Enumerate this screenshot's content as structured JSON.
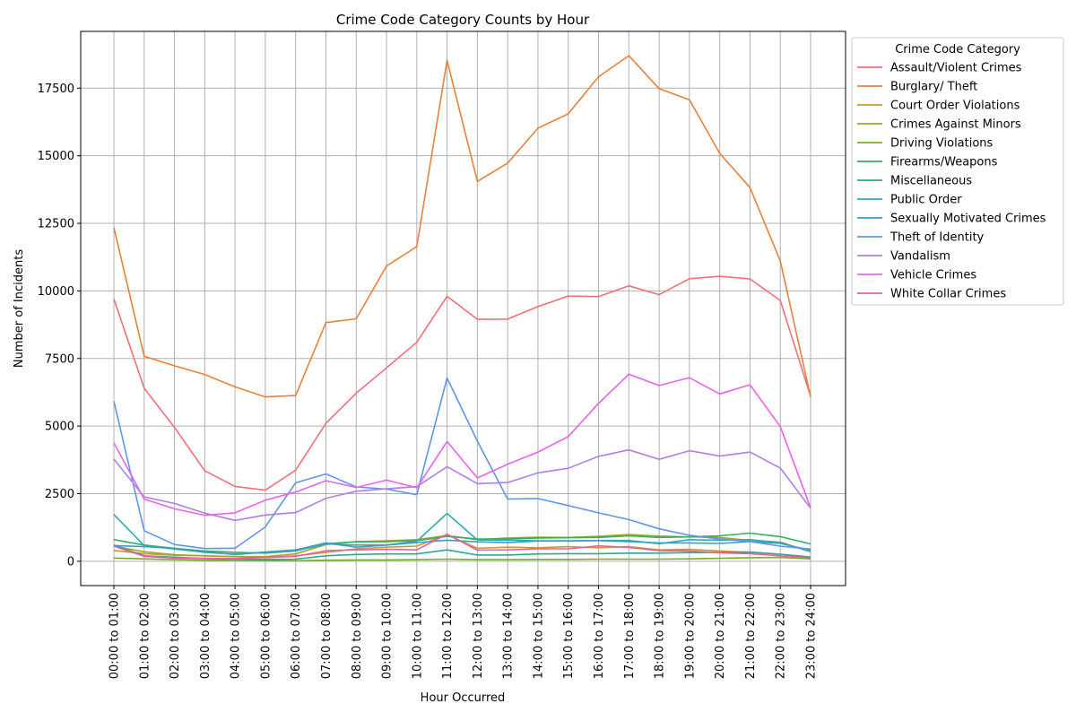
{
  "chart_data": {
    "type": "line",
    "title": "Crime Code Category Counts by Hour",
    "xlabel": "Hour Occurred",
    "ylabel": "Number of Incidents",
    "ylim": [
      -900,
      19600
    ],
    "yticks": [
      0,
      2500,
      5000,
      7500,
      10000,
      12500,
      15000,
      17500
    ],
    "grid": true,
    "legend_title": "Crime Code Category",
    "legend_position": "outside-right-top",
    "categories": [
      "00:00 to 01:00",
      "01:00 to 02:00",
      "02:00 to 03:00",
      "03:00 to 04:00",
      "04:00 to 05:00",
      "05:00 to 06:00",
      "06:00 to 07:00",
      "07:00 to 08:00",
      "08:00 to 09:00",
      "09:00 to 10:00",
      "10:00 to 11:00",
      "11:00 to 12:00",
      "12:00 to 13:00",
      "13:00 to 14:00",
      "14:00 to 15:00",
      "15:00 to 16:00",
      "16:00 to 17:00",
      "17:00 to 18:00",
      "18:00 to 19:00",
      "19:00 to 20:00",
      "20:00 to 21:00",
      "21:00 to 22:00",
      "22:00 to 23:00",
      "23:00 to 24:00"
    ],
    "series": [
      {
        "name": "Assault/Violent Crimes",
        "color": "#f2707a",
        "values": [
          9700,
          6400,
          4950,
          3350,
          2770,
          2630,
          3370,
          5100,
          6220,
          7150,
          8100,
          9800,
          8950,
          8960,
          9420,
          9810,
          9790,
          10190,
          9860,
          10450,
          10540,
          10440,
          9650,
          6100
        ]
      },
      {
        "name": "Burglary/ Theft",
        "color": "#e8823a",
        "values": [
          12350,
          7580,
          7230,
          6910,
          6450,
          6080,
          6130,
          8830,
          8970,
          10920,
          11640,
          18530,
          14050,
          14730,
          16020,
          16550,
          17920,
          18700,
          17480,
          17070,
          15090,
          13820,
          11110,
          6080
        ]
      },
      {
        "name": "Court Order Violations",
        "color": "#cc9a2a",
        "values": [
          400,
          280,
          220,
          200,
          170,
          130,
          200,
          330,
          460,
          520,
          560,
          980,
          480,
          520,
          500,
          540,
          500,
          540,
          420,
          440,
          380,
          330,
          260,
          160
        ]
      },
      {
        "name": "Crimes Against Minors",
        "color": "#a9a228",
        "values": [
          560,
          350,
          240,
          200,
          170,
          170,
          270,
          620,
          730,
          760,
          800,
          950,
          800,
          860,
          890,
          880,
          920,
          990,
          930,
          900,
          880,
          770,
          710,
          350
        ]
      },
      {
        "name": "Driving Violations",
        "color": "#77ad2b",
        "values": [
          120,
          90,
          60,
          40,
          30,
          20,
          20,
          40,
          50,
          50,
          60,
          80,
          60,
          60,
          70,
          70,
          80,
          80,
          80,
          90,
          110,
          130,
          140,
          90
        ]
      },
      {
        "name": "Firearms/Weapons",
        "color": "#30b060",
        "values": [
          800,
          600,
          480,
          380,
          330,
          300,
          380,
          650,
          720,
          730,
          760,
          920,
          820,
          820,
          860,
          870,
          880,
          940,
          880,
          900,
          940,
          1040,
          910,
          640
        ]
      },
      {
        "name": "Miscellaneous",
        "color": "#2fa88e",
        "values": [
          600,
          200,
          150,
          100,
          80,
          70,
          80,
          200,
          250,
          270,
          270,
          420,
          230,
          230,
          270,
          280,
          280,
          300,
          300,
          320,
          330,
          340,
          260,
          150
        ]
      },
      {
        "name": "Public Order",
        "color": "#30acb0",
        "values": [
          1730,
          580,
          450,
          340,
          250,
          330,
          390,
          640,
          600,
          600,
          740,
          1770,
          790,
          780,
          760,
          750,
          770,
          770,
          650,
          800,
          780,
          800,
          690,
          360
        ]
      },
      {
        "name": "Sexually Motivated Crimes",
        "color": "#3b9ec9",
        "values": [
          580,
          540,
          480,
          330,
          260,
          340,
          420,
          680,
          520,
          600,
          690,
          780,
          720,
          690,
          750,
          760,
          760,
          730,
          680,
          680,
          660,
          730,
          660,
          410
        ]
      },
      {
        "name": "Theft of Identity",
        "color": "#5f96e8",
        "values": [
          5920,
          1130,
          620,
          470,
          480,
          1270,
          2900,
          3230,
          2750,
          2670,
          2460,
          6780,
          4440,
          2300,
          2320,
          2060,
          1790,
          1540,
          1200,
          960,
          820,
          730,
          560,
          450
        ]
      },
      {
        "name": "Vandalism",
        "color": "#b07fe6",
        "values": [
          3780,
          2380,
          2140,
          1780,
          1510,
          1710,
          1800,
          2330,
          2590,
          2680,
          2760,
          3500,
          2870,
          2910,
          3270,
          3440,
          3880,
          4120,
          3770,
          4090,
          3890,
          4040,
          3450,
          1960
        ]
      },
      {
        "name": "Vehicle Crimes",
        "color": "#e964e8",
        "values": [
          4380,
          2300,
          1940,
          1700,
          1790,
          2260,
          2560,
          2980,
          2730,
          3000,
          2720,
          4430,
          3080,
          3590,
          4040,
          4610,
          5840,
          6920,
          6500,
          6790,
          6190,
          6530,
          4980,
          1980
        ]
      },
      {
        "name": "White Collar Crimes",
        "color": "#e85ea8",
        "values": [
          560,
          180,
          120,
          110,
          100,
          140,
          180,
          390,
          420,
          440,
          420,
          1000,
          410,
          420,
          460,
          460,
          570,
          510,
          390,
          380,
          310,
          280,
          200,
          130
        ]
      }
    ]
  }
}
